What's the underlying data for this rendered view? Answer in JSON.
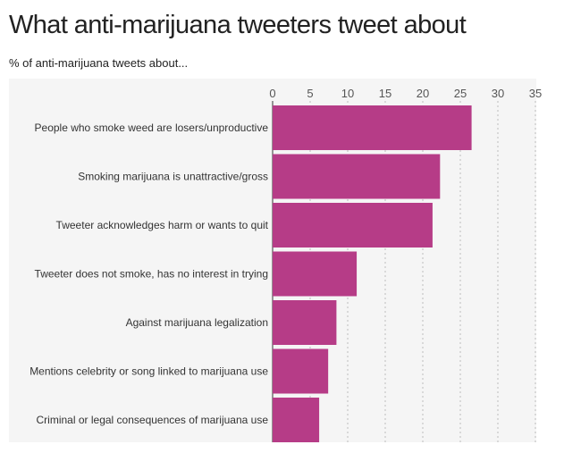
{
  "title": "What anti-marijuana tweeters tweet about",
  "subtitle": "% of anti-marijuana tweets about...",
  "chart_data": {
    "type": "bar",
    "orientation": "horizontal",
    "categories": [
      "People who smoke weed are losers/unproductive",
      "Smoking marijuana is unattractive/gross",
      "Tweeter acknowledges harm or wants to quit",
      "Tweeter does not smoke, has no interest in trying",
      "Against marijuana legalization",
      "Mentions celebrity or song linked to marijuana use",
      "Criminal or legal consequences of marijuana use"
    ],
    "values": [
      26.5,
      22.3,
      21.3,
      11.2,
      8.5,
      7.4,
      6.2
    ],
    "xlim": [
      0,
      35
    ],
    "ticks": [
      0,
      5,
      10,
      15,
      20,
      25,
      30,
      35
    ],
    "axis_position": "top",
    "grid": true,
    "bar_color": "#b63c87",
    "background_band_color": "#f5f5f5"
  }
}
